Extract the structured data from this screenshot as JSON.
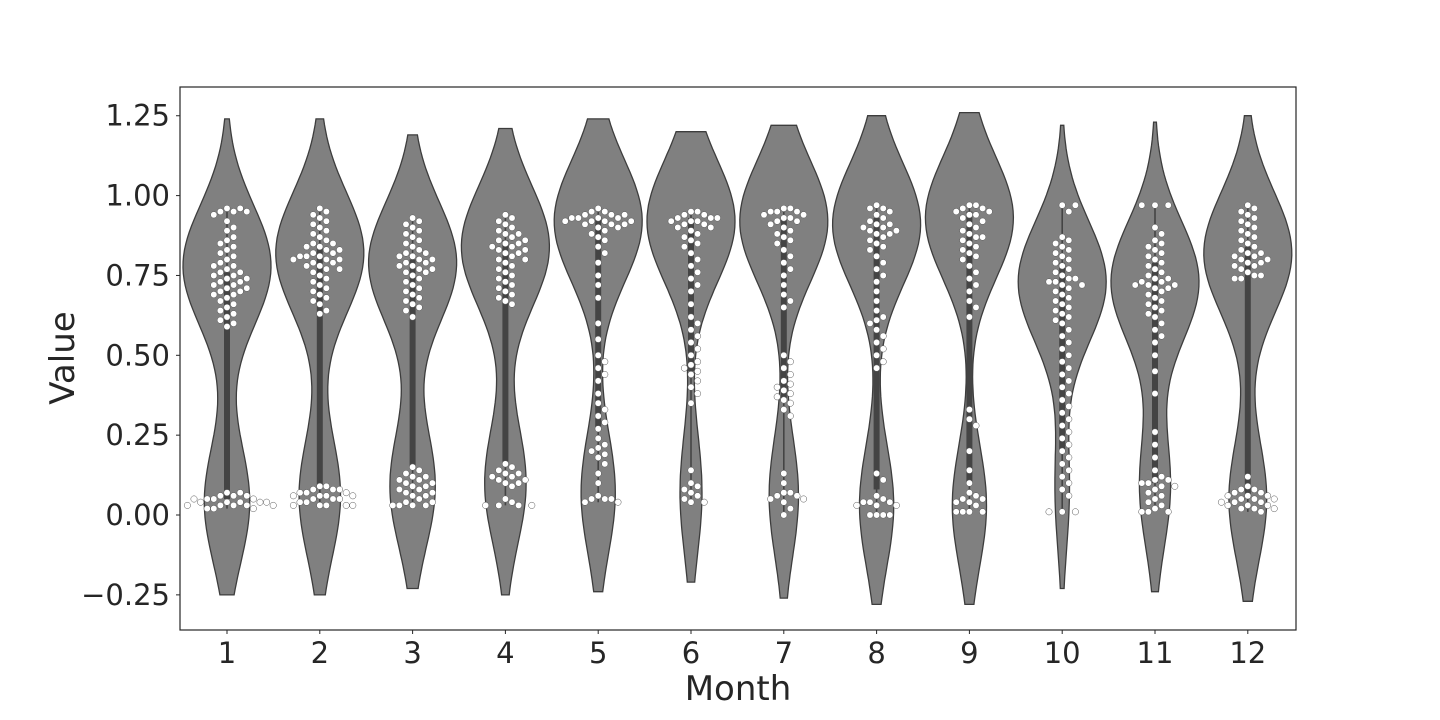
{
  "chart_data": {
    "type": "violin",
    "xlabel": "Month",
    "ylabel": "Value",
    "ylim": [
      -0.36,
      1.34
    ],
    "yticks": [
      -0.25,
      0,
      0.25,
      0.5,
      0.75,
      1.0,
      1.25
    ],
    "ytick_labels": [
      "−0.25",
      "0.00",
      "0.25",
      "0.50",
      "0.75",
      "1.00",
      "1.25"
    ],
    "categories": [
      "1",
      "2",
      "3",
      "4",
      "5",
      "6",
      "7",
      "8",
      "9",
      "10",
      "11",
      "12"
    ],
    "grid": false,
    "colors": {
      "violin_fill": "#808080",
      "violin_edge": "#3d3d3d",
      "box": "#444444",
      "point": "#ffffff",
      "point_edge": "#555555"
    },
    "violins": [
      {
        "month": "1",
        "range": [
          -0.25,
          1.24
        ],
        "upper_peak": 0.78,
        "lower_peak": 0.04,
        "upper_share": 0.66,
        "iqr": [
          0.05,
          0.76
        ],
        "median": 0.62,
        "whisker": [
          0.02,
          0.96
        ]
      },
      {
        "month": "2",
        "range": [
          -0.25,
          1.24
        ],
        "upper_peak": 0.82,
        "lower_peak": 0.06,
        "upper_share": 0.68,
        "iqr": [
          0.09,
          0.84
        ],
        "median": 0.72,
        "whisker": [
          0.03,
          0.96
        ]
      },
      {
        "month": "3",
        "range": [
          -0.23,
          1.19
        ],
        "upper_peak": 0.79,
        "lower_peak": 0.09,
        "upper_share": 0.66,
        "iqr": [
          0.15,
          0.8
        ],
        "median": 0.69,
        "whisker": [
          0.03,
          0.94
        ]
      },
      {
        "month": "4",
        "range": [
          -0.25,
          1.21
        ],
        "upper_peak": 0.84,
        "lower_peak": 0.1,
        "upper_share": 0.68,
        "iqr": [
          0.16,
          0.86
        ],
        "median": 0.76,
        "whisker": [
          0.03,
          0.94
        ]
      },
      {
        "month": "5",
        "range": [
          -0.24,
          1.24
        ],
        "upper_peak": 0.92,
        "lower_peak": 0.07,
        "upper_share": 0.72,
        "iqr": [
          0.27,
          0.93
        ],
        "median": 0.9,
        "whisker": [
          0.04,
          0.96
        ]
      },
      {
        "month": "6",
        "range": [
          -0.21,
          1.2
        ],
        "upper_peak": 0.92,
        "lower_peak": 0.07,
        "upper_share": 0.8,
        "iqr": [
          0.45,
          0.93
        ],
        "median": 0.88,
        "whisker": [
          0.04,
          0.96
        ]
      },
      {
        "month": "7",
        "range": [
          -0.26,
          1.22
        ],
        "upper_peak": 0.92,
        "lower_peak": 0.06,
        "upper_share": 0.75,
        "iqr": [
          0.36,
          0.93
        ],
        "median": 0.87,
        "whisker": [
          0.0,
          0.96
        ]
      },
      {
        "month": "8",
        "range": [
          -0.28,
          1.25
        ],
        "upper_peak": 0.91,
        "lower_peak": 0.03,
        "upper_share": 0.72,
        "iqr": [
          0.08,
          0.93
        ],
        "median": 0.82,
        "whisker": [
          0.0,
          0.97
        ]
      },
      {
        "month": "9",
        "range": [
          -0.28,
          1.26
        ],
        "upper_peak": 0.93,
        "lower_peak": 0.03,
        "upper_share": 0.72,
        "iqr": [
          0.1,
          0.95
        ],
        "median": 0.86,
        "whisker": [
          0.01,
          0.97
        ]
      },
      {
        "month": "10",
        "range": [
          -0.23,
          1.22
        ],
        "upper_peak": 0.73,
        "lower_peak": 0.08,
        "upper_share": 0.86,
        "iqr": [
          0.2,
          0.79
        ],
        "median": 0.64,
        "whisker": [
          0.01,
          0.97
        ]
      },
      {
        "month": "11",
        "range": [
          -0.24,
          1.23
        ],
        "upper_peak": 0.73,
        "lower_peak": 0.09,
        "upper_share": 0.74,
        "iqr": [
          0.1,
          0.79
        ],
        "median": 0.68,
        "whisker": [
          0.01,
          0.97
        ]
      },
      {
        "month": "12",
        "range": [
          -0.27,
          1.25
        ],
        "upper_peak": 0.82,
        "lower_peak": 0.05,
        "upper_share": 0.7,
        "iqr": [
          0.06,
          0.84
        ],
        "median": 0.73,
        "whisker": [
          0.01,
          0.97
        ]
      }
    ],
    "points": {
      "1": [
        0.96,
        0.95,
        0.95,
        0.96,
        0.95,
        0.94,
        0.92,
        0.9,
        0.89,
        0.87,
        0.86,
        0.85,
        0.84,
        0.83,
        0.82,
        0.81,
        0.8,
        0.79,
        0.78,
        0.78,
        0.77,
        0.76,
        0.76,
        0.75,
        0.75,
        0.74,
        0.74,
        0.73,
        0.73,
        0.72,
        0.72,
        0.71,
        0.71,
        0.7,
        0.7,
        0.69,
        0.69,
        0.68,
        0.67,
        0.66,
        0.65,
        0.64,
        0.63,
        0.62,
        0.61,
        0.6,
        0.59,
        0.07,
        0.07,
        0.06,
        0.06,
        0.06,
        0.05,
        0.05,
        0.05,
        0.05,
        0.04,
        0.04,
        0.04,
        0.04,
        0.04,
        0.03,
        0.03,
        0.03,
        0.03,
        0.03,
        0.02,
        0.02,
        0.02
      ],
      "2": [
        0.96,
        0.95,
        0.94,
        0.93,
        0.92,
        0.91,
        0.9,
        0.89,
        0.88,
        0.87,
        0.86,
        0.85,
        0.85,
        0.84,
        0.84,
        0.83,
        0.83,
        0.82,
        0.82,
        0.81,
        0.81,
        0.81,
        0.8,
        0.8,
        0.8,
        0.79,
        0.79,
        0.78,
        0.78,
        0.77,
        0.77,
        0.76,
        0.75,
        0.74,
        0.73,
        0.72,
        0.71,
        0.7,
        0.69,
        0.68,
        0.67,
        0.66,
        0.64,
        0.63,
        0.09,
        0.09,
        0.08,
        0.08,
        0.08,
        0.07,
        0.07,
        0.07,
        0.06,
        0.06,
        0.06,
        0.06,
        0.05,
        0.05,
        0.05,
        0.04,
        0.04,
        0.03,
        0.03,
        0.03,
        0.03,
        0.03
      ],
      "3": [
        0.93,
        0.92,
        0.91,
        0.9,
        0.89,
        0.88,
        0.87,
        0.86,
        0.85,
        0.84,
        0.83,
        0.82,
        0.82,
        0.81,
        0.81,
        0.8,
        0.8,
        0.79,
        0.79,
        0.78,
        0.78,
        0.77,
        0.77,
        0.76,
        0.76,
        0.75,
        0.74,
        0.73,
        0.72,
        0.71,
        0.7,
        0.69,
        0.68,
        0.67,
        0.66,
        0.65,
        0.64,
        0.62,
        0.15,
        0.14,
        0.13,
        0.12,
        0.12,
        0.11,
        0.11,
        0.1,
        0.1,
        0.09,
        0.09,
        0.08,
        0.08,
        0.07,
        0.07,
        0.06,
        0.06,
        0.05,
        0.04,
        0.04,
        0.03,
        0.03,
        0.03,
        0.03
      ],
      "4": [
        0.94,
        0.93,
        0.92,
        0.91,
        0.9,
        0.89,
        0.88,
        0.88,
        0.87,
        0.86,
        0.86,
        0.85,
        0.85,
        0.84,
        0.84,
        0.83,
        0.83,
        0.82,
        0.82,
        0.81,
        0.8,
        0.8,
        0.79,
        0.78,
        0.77,
        0.76,
        0.75,
        0.74,
        0.73,
        0.72,
        0.71,
        0.7,
        0.69,
        0.68,
        0.67,
        0.66,
        0.16,
        0.15,
        0.14,
        0.13,
        0.13,
        0.12,
        0.12,
        0.11,
        0.11,
        0.1,
        0.1,
        0.09,
        0.05,
        0.04,
        0.03,
        0.03,
        0.03,
        0.03
      ],
      "5": [
        0.96,
        0.95,
        0.95,
        0.94,
        0.94,
        0.94,
        0.93,
        0.93,
        0.93,
        0.93,
        0.92,
        0.92,
        0.92,
        0.92,
        0.91,
        0.91,
        0.91,
        0.9,
        0.9,
        0.89,
        0.88,
        0.87,
        0.86,
        0.84,
        0.82,
        0.79,
        0.75,
        0.72,
        0.68,
        0.6,
        0.55,
        0.5,
        0.48,
        0.46,
        0.44,
        0.42,
        0.38,
        0.35,
        0.33,
        0.31,
        0.29,
        0.27,
        0.24,
        0.22,
        0.21,
        0.2,
        0.19,
        0.18,
        0.16,
        0.13,
        0.1,
        0.06,
        0.05,
        0.05,
        0.05,
        0.04,
        0.04
      ],
      "6": [
        0.95,
        0.95,
        0.94,
        0.94,
        0.93,
        0.93,
        0.93,
        0.92,
        0.92,
        0.92,
        0.91,
        0.91,
        0.9,
        0.9,
        0.89,
        0.88,
        0.87,
        0.86,
        0.85,
        0.84,
        0.82,
        0.8,
        0.78,
        0.76,
        0.74,
        0.72,
        0.7,
        0.66,
        0.62,
        0.6,
        0.58,
        0.56,
        0.54,
        0.52,
        0.5,
        0.48,
        0.47,
        0.46,
        0.45,
        0.44,
        0.42,
        0.4,
        0.38,
        0.35,
        0.14,
        0.1,
        0.09,
        0.08,
        0.07,
        0.06,
        0.05,
        0.04,
        0.04
      ],
      "7": [
        0.96,
        0.96,
        0.95,
        0.95,
        0.95,
        0.94,
        0.94,
        0.93,
        0.93,
        0.92,
        0.92,
        0.91,
        0.9,
        0.89,
        0.88,
        0.87,
        0.86,
        0.85,
        0.83,
        0.81,
        0.79,
        0.77,
        0.75,
        0.72,
        0.69,
        0.67,
        0.65,
        0.5,
        0.48,
        0.46,
        0.44,
        0.42,
        0.41,
        0.4,
        0.39,
        0.38,
        0.37,
        0.36,
        0.35,
        0.33,
        0.31,
        0.13,
        0.1,
        0.07,
        0.07,
        0.06,
        0.06,
        0.05,
        0.05,
        0.04,
        0.02,
        0.0
      ],
      "8": [
        0.97,
        0.96,
        0.96,
        0.95,
        0.94,
        0.93,
        0.92,
        0.91,
        0.91,
        0.9,
        0.9,
        0.89,
        0.89,
        0.88,
        0.88,
        0.87,
        0.86,
        0.85,
        0.84,
        0.83,
        0.81,
        0.79,
        0.77,
        0.75,
        0.73,
        0.7,
        0.67,
        0.64,
        0.62,
        0.61,
        0.6,
        0.58,
        0.56,
        0.54,
        0.52,
        0.5,
        0.48,
        0.46,
        0.13,
        0.11,
        0.06,
        0.05,
        0.04,
        0.04,
        0.04,
        0.03,
        0.03,
        0.03,
        0.0,
        0.0,
        0.0,
        0.0
      ],
      "9": [
        0.97,
        0.97,
        0.96,
        0.96,
        0.95,
        0.95,
        0.94,
        0.94,
        0.93,
        0.92,
        0.91,
        0.9,
        0.89,
        0.88,
        0.87,
        0.87,
        0.86,
        0.85,
        0.84,
        0.83,
        0.82,
        0.81,
        0.8,
        0.78,
        0.76,
        0.74,
        0.72,
        0.7,
        0.67,
        0.65,
        0.62,
        0.33,
        0.3,
        0.28,
        0.2,
        0.14,
        0.1,
        0.07,
        0.06,
        0.05,
        0.05,
        0.04,
        0.04,
        0.03,
        0.01,
        0.01,
        0.01,
        0.01
      ],
      "10": [
        0.97,
        0.97,
        0.95,
        0.87,
        0.86,
        0.85,
        0.84,
        0.83,
        0.82,
        0.81,
        0.8,
        0.79,
        0.78,
        0.77,
        0.76,
        0.75,
        0.74,
        0.74,
        0.73,
        0.73,
        0.72,
        0.72,
        0.71,
        0.7,
        0.69,
        0.68,
        0.67,
        0.66,
        0.65,
        0.64,
        0.63,
        0.62,
        0.61,
        0.6,
        0.58,
        0.56,
        0.54,
        0.52,
        0.5,
        0.48,
        0.46,
        0.44,
        0.42,
        0.4,
        0.38,
        0.36,
        0.34,
        0.32,
        0.3,
        0.28,
        0.26,
        0.24,
        0.22,
        0.2,
        0.18,
        0.16,
        0.14,
        0.12,
        0.1,
        0.08,
        0.06,
        0.01,
        0.01,
        0.01
      ],
      "11": [
        0.97,
        0.97,
        0.97,
        0.9,
        0.88,
        0.86,
        0.85,
        0.84,
        0.83,
        0.82,
        0.81,
        0.8,
        0.79,
        0.78,
        0.77,
        0.76,
        0.75,
        0.74,
        0.74,
        0.73,
        0.73,
        0.72,
        0.72,
        0.72,
        0.71,
        0.71,
        0.7,
        0.69,
        0.68,
        0.67,
        0.66,
        0.65,
        0.64,
        0.63,
        0.62,
        0.6,
        0.58,
        0.56,
        0.54,
        0.5,
        0.45,
        0.38,
        0.26,
        0.22,
        0.18,
        0.14,
        0.12,
        0.11,
        0.11,
        0.1,
        0.1,
        0.09,
        0.09,
        0.08,
        0.07,
        0.06,
        0.05,
        0.04,
        0.03,
        0.02,
        0.01,
        0.01,
        0.01
      ],
      "12": [
        0.97,
        0.96,
        0.95,
        0.94,
        0.93,
        0.92,
        0.91,
        0.9,
        0.89,
        0.88,
        0.87,
        0.86,
        0.85,
        0.84,
        0.83,
        0.82,
        0.82,
        0.81,
        0.81,
        0.8,
        0.8,
        0.79,
        0.79,
        0.78,
        0.78,
        0.77,
        0.76,
        0.75,
        0.75,
        0.74,
        0.74,
        0.12,
        0.09,
        0.08,
        0.08,
        0.07,
        0.07,
        0.06,
        0.06,
        0.06,
        0.05,
        0.05,
        0.05,
        0.04,
        0.04,
        0.04,
        0.03,
        0.03,
        0.03,
        0.02,
        0.02,
        0.02,
        0.01
      ]
    }
  }
}
